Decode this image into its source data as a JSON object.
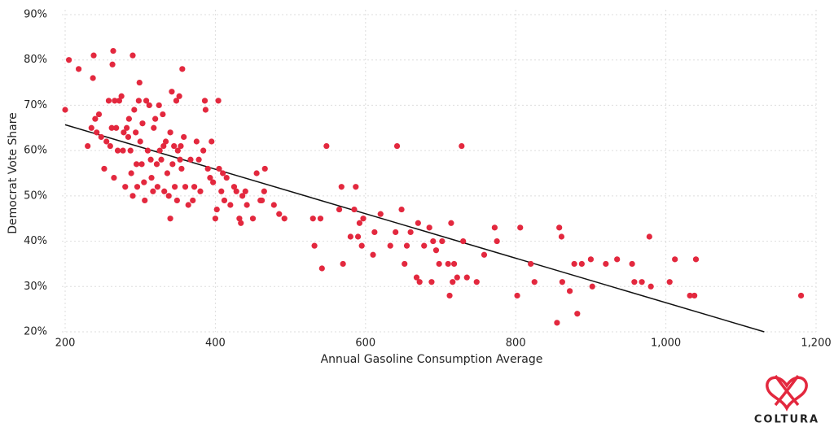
{
  "chart_data": {
    "type": "scatter",
    "x_label": "Annual Gasoline Consumption Average",
    "y_label": "Democrat Vote Share",
    "xlim": [
      200,
      1200
    ],
    "ylim": [
      20,
      90
    ],
    "xticks": [
      200,
      400,
      600,
      800,
      {
        "value": 1000,
        "label": "1,000"
      },
      {
        "value": 1200,
        "label": "1,200"
      }
    ],
    "yticks": [
      {
        "value": 20,
        "label": "20%"
      },
      {
        "value": 30,
        "label": "30%"
      },
      {
        "value": 40,
        "label": "40%"
      },
      {
        "value": 50,
        "label": "50%"
      },
      {
        "value": 60,
        "label": "60%"
      },
      {
        "value": 70,
        "label": "70%"
      },
      {
        "value": 80,
        "label": "80%"
      },
      {
        "value": 90,
        "label": "90%"
      }
    ],
    "grid": true,
    "color": "#e3283e",
    "trend_color": "#111111",
    "x": [
      200,
      205,
      218,
      230,
      235,
      237,
      238,
      240,
      242,
      245,
      248,
      252,
      255,
      258,
      260,
      262,
      263,
      264,
      265,
      266,
      268,
      270,
      272,
      275,
      277,
      278,
      280,
      282,
      284,
      285,
      287,
      288,
      290,
      290,
      292,
      294,
      295,
      296,
      298,
      299,
      300,
      302,
      303,
      305,
      306,
      308,
      310,
      312,
      314,
      315,
      317,
      318,
      320,
      322,
      323,
      325,
      326,
      328,
      330,
      331,
      332,
      334,
      336,
      338,
      340,
      340,
      342,
      343,
      345,
      346,
      348,
      349,
      350,
      352,
      353,
      354,
      355,
      356,
      358,
      360,
      364,
      367,
      370,
      372,
      375,
      378,
      380,
      384,
      386,
      387,
      390,
      393,
      395,
      397,
      400,
      402,
      404,
      405,
      408,
      410,
      412,
      415,
      420,
      425,
      428,
      432,
      434,
      436,
      440,
      442,
      450,
      455,
      460,
      462,
      465,
      466,
      478,
      485,
      492,
      530,
      532,
      540,
      542,
      548,
      565,
      568,
      570,
      580,
      585,
      587,
      590,
      592,
      595,
      597,
      610,
      612,
      620,
      633,
      640,
      642,
      648,
      652,
      655,
      660,
      668,
      670,
      672,
      678,
      685,
      688,
      690,
      694,
      698,
      702,
      710,
      712,
      714,
      716,
      718,
      722,
      728,
      730,
      735,
      748,
      758,
      772,
      775,
      802,
      806,
      820,
      825,
      855,
      858,
      861,
      862,
      872,
      878,
      882,
      888,
      900,
      902,
      920,
      935,
      955,
      958,
      968,
      978,
      980,
      1005,
      1012,
      1032,
      1038,
      1040,
      1180
    ],
    "values": [
      69,
      80,
      78,
      61,
      65,
      76,
      81,
      67,
      64,
      68,
      63,
      56,
      62,
      71,
      61,
      65,
      79,
      82,
      54,
      71,
      65,
      60,
      71,
      72,
      60,
      64,
      52,
      65,
      63,
      67,
      60,
      55,
      81,
      50,
      69,
      64,
      57,
      52,
      71,
      75,
      62,
      57,
      66,
      53,
      49,
      71,
      60,
      70,
      58,
      54,
      51,
      65,
      67,
      57,
      52,
      70,
      60,
      58,
      68,
      61,
      51,
      62,
      55,
      50,
      64,
      45,
      73,
      57,
      61,
      52,
      71,
      49,
      60,
      72,
      58,
      61,
      56,
      78,
      63,
      52,
      48,
      58,
      49,
      52,
      62,
      58,
      51,
      60,
      71,
      69,
      56,
      54,
      62,
      53,
      45,
      47,
      71,
      56,
      51,
      55,
      49,
      54,
      48,
      52,
      51,
      45,
      44,
      50,
      51,
      48,
      45,
      55,
      49,
      49,
      51,
      56,
      48,
      46,
      45,
      45,
      39,
      45,
      34,
      61,
      47,
      52,
      35,
      41,
      47,
      52,
      41,
      44,
      39,
      45,
      37,
      42,
      46,
      39,
      42,
      61,
      47,
      35,
      39,
      42,
      32,
      44,
      31,
      39,
      43,
      31,
      40,
      38,
      35,
      40,
      35,
      28,
      44,
      31,
      35,
      32,
      61,
      40,
      32,
      31,
      37,
      43,
      40,
      28,
      43,
      35,
      31,
      22,
      43,
      41,
      31,
      29,
      35,
      24,
      35,
      36,
      30,
      35,
      36,
      35,
      31,
      31,
      41,
      30,
      31,
      36,
      28,
      28,
      36,
      28
    ],
    "trendline": {
      "x": [
        200,
        1131
      ],
      "y": [
        65.7,
        20
      ]
    }
  },
  "brand": "COLTURA"
}
